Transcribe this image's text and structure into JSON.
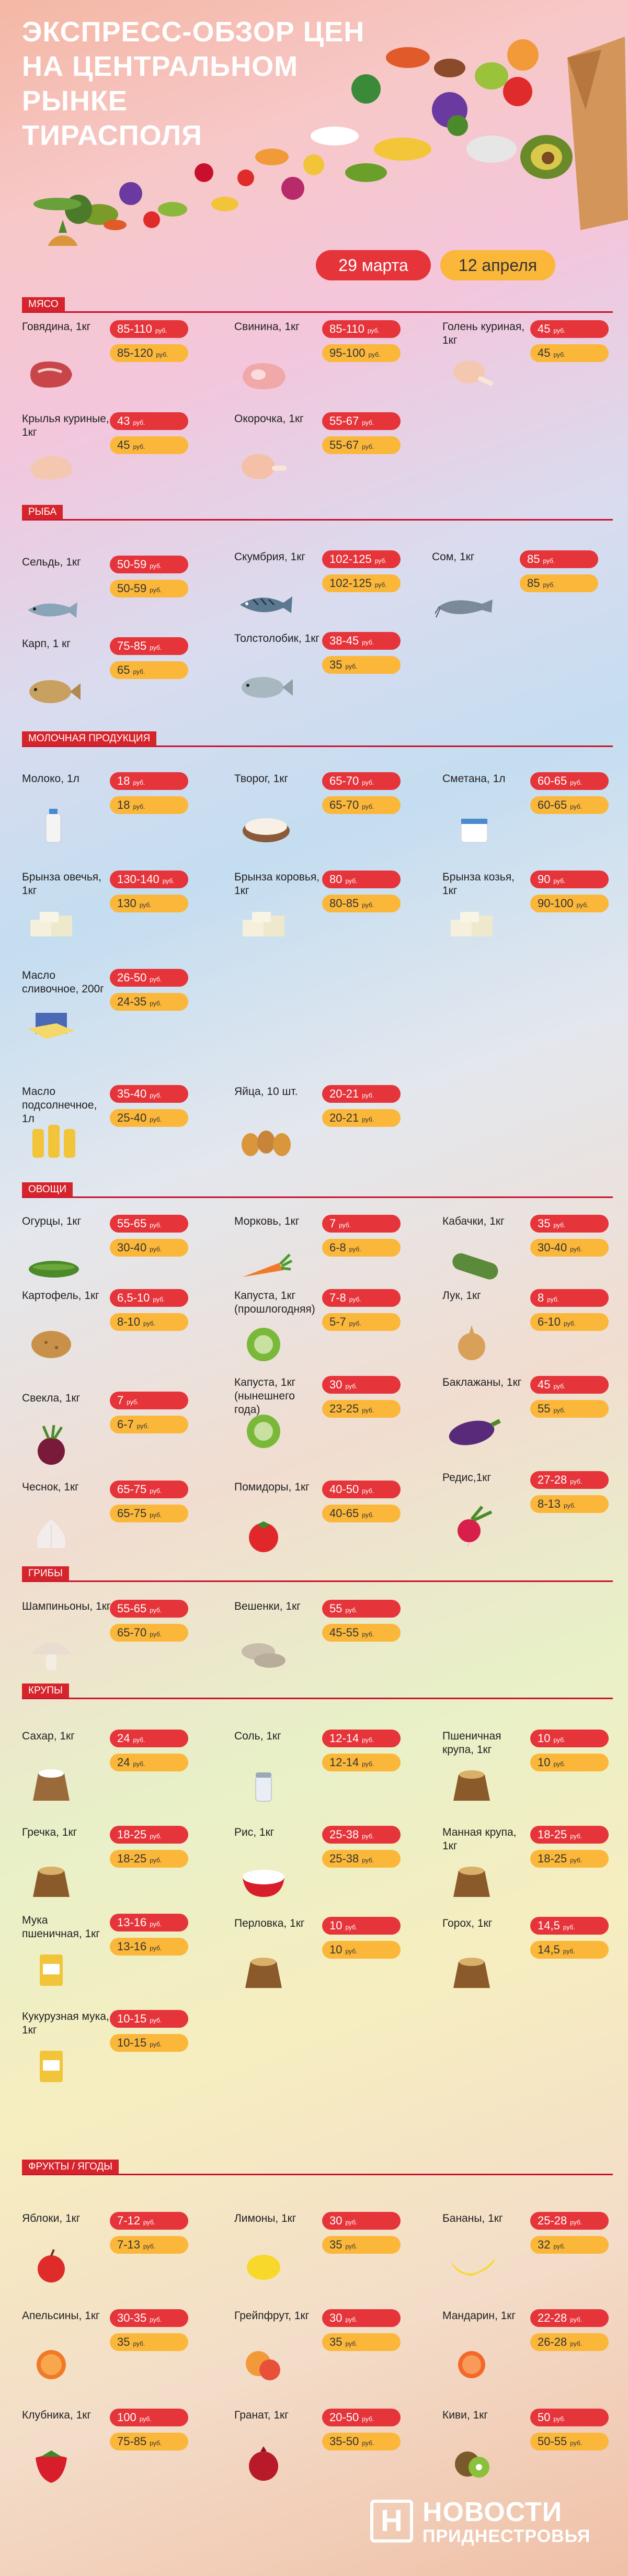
{
  "header": {
    "title_lines": [
      "ЭКСПРЕСС-ОБЗОР ЦЕН",
      "НА ЦЕНТРАЛЬНОМ РЫНКЕ",
      "ТИРАСПОЛЯ"
    ],
    "date_old": "29 марта",
    "date_new": "12 апреля"
  },
  "colors": {
    "red": "#e5343a",
    "orange": "#fbb73a",
    "section_red": "#d6242d"
  },
  "unit": "руб.",
  "sections": {
    "meat": "Мясо",
    "fish": "Рыба",
    "dairy": "Молочная продукция",
    "veg": "Овощи",
    "mushrooms": "Грибы",
    "grains": "Крупы",
    "fruits": "Фрукты / ягоды"
  },
  "items": {
    "beef": {
      "name": "Говядина, 1кг",
      "p1": "85-110",
      "p2": "85-120",
      "icon": "beef-icon"
    },
    "pork": {
      "name": "Свинина, 1кг",
      "p1": "85-110",
      "p2": "95-100",
      "icon": "pork-icon"
    },
    "shank": {
      "name": "Голень куриная, 1кг",
      "p1": "45",
      "p2": "45",
      "icon": "chicken-leg-icon"
    },
    "wings": {
      "name": "Крылья куриные, 1кг",
      "p1": "43",
      "p2": "45",
      "icon": "chicken-wing-icon"
    },
    "okorochok": {
      "name": "Окорочка, 1кг",
      "p1": "55-67",
      "p2": "55-67",
      "icon": "chicken-thigh-icon"
    },
    "herring": {
      "name": "Сельдь, 1кг",
      "p1": "50-59",
      "p2": "50-59",
      "icon": "herring-icon"
    },
    "mackerel": {
      "name": "Скумбрия, 1кг",
      "p1": "102-125",
      "p2": "102-125",
      "icon": "mackerel-icon"
    },
    "catfish": {
      "name": "Сом, 1кг",
      "p1": "85",
      "p2": "85",
      "icon": "catfish-icon"
    },
    "carp": {
      "name": "Карп, 1 кг",
      "p1": "75-85",
      "p2": "65",
      "icon": "carp-icon"
    },
    "silvercarp": {
      "name": "Толстолобик, 1кг",
      "p1": "38-45",
      "p2": "35",
      "icon": "silver-carp-icon"
    },
    "milk": {
      "name": "Молоко, 1л",
      "p1": "18",
      "p2": "18",
      "icon": "milk-icon"
    },
    "cottage": {
      "name": "Творог, 1кг",
      "p1": "65-70",
      "p2": "65-70",
      "icon": "cottage-cheese-icon"
    },
    "sourcream": {
      "name": "Сметана, 1л",
      "p1": "60-65",
      "p2": "60-65",
      "icon": "sour-cream-icon"
    },
    "bryn_sheep": {
      "name": "Брынза овечья, 1кг",
      "p1": "130-140",
      "p2": "130",
      "icon": "feta-icon"
    },
    "bryn_cow": {
      "name": "Брынза коровья, 1кг",
      "p1": "80",
      "p2": "80-85",
      "icon": "feta-icon"
    },
    "bryn_goat": {
      "name": "Брынза козья, 1кг",
      "p1": "90",
      "p2": "90-100",
      "icon": "feta-icon"
    },
    "butter": {
      "name": "Масло сливочное, 200г",
      "p1": "26-50",
      "p2": "24-35",
      "icon": "butter-icon"
    },
    "oil": {
      "name": "Масло подсолнечное, 1л",
      "p1": "35-40",
      "p2": "25-40",
      "icon": "oil-bottle-icon"
    },
    "eggs": {
      "name": "Яйца, 10 шт.",
      "p1": "20-21",
      "p2": "20-21",
      "icon": "eggs-icon"
    },
    "cucumbers": {
      "name": "Огурцы, 1кг",
      "p1": "55-65",
      "p2": "30-40",
      "icon": "cucumber-icon"
    },
    "carrot": {
      "name": "Морковь, 1кг",
      "p1": "7",
      "p2": "6-8",
      "icon": "carrot-icon"
    },
    "zucchini": {
      "name": "Кабачки, 1кг",
      "p1": "35",
      "p2": "30-40",
      "icon": "zucchini-icon"
    },
    "potato": {
      "name": "Картофель, 1кг",
      "p1": "6,5-10",
      "p2": "8-10",
      "icon": "potato-icon"
    },
    "cabbage_old": {
      "name": "Капуста, 1кг (прошлогодняя)",
      "p1": "7-8",
      "p2": "5-7",
      "icon": "cabbage-icon"
    },
    "onion": {
      "name": "Лук, 1кг",
      "p1": "8",
      "p2": "6-10",
      "icon": "onion-icon"
    },
    "beet": {
      "name": "Свекла, 1кг",
      "p1": "7",
      "p2": "6-7",
      "icon": "beet-icon"
    },
    "cabbage_new": {
      "name": "Капуста, 1кг (нынешнего года)",
      "p1": "30",
      "p2": "23-25",
      "icon": "cabbage-icon"
    },
    "eggplant": {
      "name": "Баклажаны, 1кг",
      "p1": "45",
      "p2": "55",
      "icon": "eggplant-icon"
    },
    "garlic": {
      "name": "Чеснок, 1кг",
      "p1": "65-75",
      "p2": "65-75",
      "icon": "garlic-icon"
    },
    "tomato": {
      "name": "Помидоры, 1кг",
      "p1": "40-50",
      "p2": "40-65",
      "icon": "tomato-icon"
    },
    "radish": {
      "name": "Редис,1кг",
      "p1": "27-28",
      "p2": "8-13",
      "icon": "radish-icon"
    },
    "champ": {
      "name": "Шампиньоны, 1кг",
      "p1": "55-65",
      "p2": "65-70",
      "icon": "mushroom-icon"
    },
    "oyster": {
      "name": "Вешенки, 1кг",
      "p1": "55",
      "p2": "45-55",
      "icon": "oyster-mushroom-icon"
    },
    "sugar": {
      "name": "Сахар, 1кг",
      "p1": "24",
      "p2": "24",
      "icon": "sugar-sack-icon"
    },
    "salt": {
      "name": "Соль, 1кг",
      "p1": "12-14",
      "p2": "12-14",
      "icon": "salt-shaker-icon"
    },
    "wheat": {
      "name": "Пшеничная крупа, 1кг",
      "p1": "10",
      "p2": "10",
      "icon": "grain-sack-icon"
    },
    "buckwheat": {
      "name": "Гречка, 1кг",
      "p1": "18-25",
      "p2": "18-25",
      "icon": "grain-sack-icon"
    },
    "rice": {
      "name": "Рис, 1кг",
      "p1": "25-38",
      "p2": "25-38",
      "icon": "rice-bowl-icon"
    },
    "semolina": {
      "name": "Манная крупа, 1кг",
      "p1": "18-25",
      "p2": "18-25",
      "icon": "grain-sack-icon"
    },
    "flour": {
      "name": "Мука пшеничная, 1кг",
      "p1": "13-16",
      "p2": "13-16",
      "icon": "flour-bag-icon"
    },
    "barley": {
      "name": "Перловка, 1кг",
      "p1": "10",
      "p2": "10",
      "icon": "grain-sack-icon"
    },
    "peas": {
      "name": "Горох, 1кг",
      "p1": "14,5",
      "p2": "14,5",
      "icon": "grain-sack-icon"
    },
    "cornmeal": {
      "name": "Кукурузная мука, 1кг",
      "p1": "10-15",
      "p2": "10-15",
      "icon": "flour-bag-icon"
    },
    "apples": {
      "name": "Яблоки, 1кг",
      "p1": "7-12",
      "p2": "7-13",
      "icon": "apple-icon"
    },
    "lemons": {
      "name": "Лимоны, 1кг",
      "p1": "30",
      "p2": "35",
      "icon": "lemon-icon"
    },
    "bananas": {
      "name": "Бананы, 1кг",
      "p1": "25-28",
      "p2": "32",
      "icon": "banana-icon"
    },
    "oranges": {
      "name": "Апельсины, 1кг",
      "p1": "30-35",
      "p2": "35",
      "icon": "orange-icon"
    },
    "grapefruit": {
      "name": "Грейпфрут, 1кг",
      "p1": "30",
      "p2": "35",
      "icon": "grapefruit-icon"
    },
    "mandarin": {
      "name": "Мандарин, 1кг",
      "p1": "22-28",
      "p2": "26-28",
      "icon": "mandarin-icon"
    },
    "strawberry": {
      "name": "Клубника, 1кг",
      "p1": "100",
      "p2": "75-85",
      "icon": "strawberry-icon"
    },
    "pomegranate": {
      "name": "Гранат, 1кг",
      "p1": "20-50",
      "p2": "35-50",
      "icon": "pomegranate-icon"
    },
    "kiwi": {
      "name": "Киви, 1кг",
      "p1": "50",
      "p2": "50-55",
      "icon": "kiwi-icon"
    }
  },
  "logo": {
    "line1": "НОВОСТИ",
    "line2": "ПРИДНЕСТРОВЬЯ",
    "mark": "Н"
  }
}
